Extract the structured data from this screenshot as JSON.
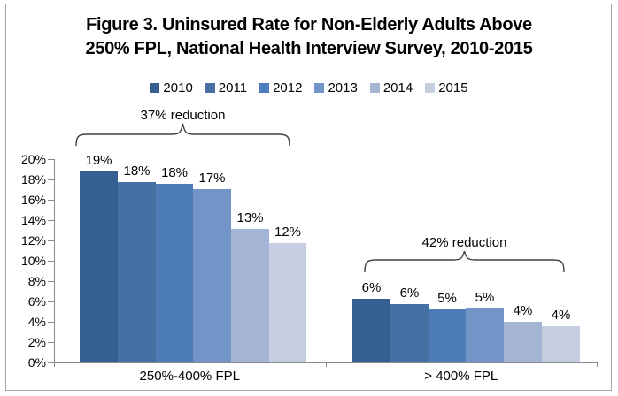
{
  "figure": {
    "title_line1": "Figure 3. Uninsured Rate for Non-Elderly Adults Above",
    "title_line2": "250% FPL, National Health Interview Survey, 2010-2015"
  },
  "colors": {
    "axis": "#898989",
    "border": "#a6a6a6",
    "bracket": "#404040",
    "text": "#000000"
  },
  "chart_data": {
    "type": "bar",
    "title": "Figure 3. Uninsured Rate for Non-Elderly Adults Above 250% FPL, National Health Interview Survey, 2010-2015",
    "categories": [
      "250%-400% FPL",
      "> 400% FPL"
    ],
    "series": [
      {
        "name": "2010",
        "color": "#365F91",
        "values": [
          19,
          6
        ],
        "plotted_estimate": [
          18.8,
          6.3
        ],
        "data_labels": [
          "19%",
          "6%"
        ]
      },
      {
        "name": "2011",
        "color": "#4470A3",
        "values": [
          18,
          6
        ],
        "plotted_estimate": [
          17.7,
          5.7
        ],
        "data_labels": [
          "18%",
          "6%"
        ]
      },
      {
        "name": "2012",
        "color": "#4D7CB7",
        "values": [
          18,
          5
        ],
        "plotted_estimate": [
          17.6,
          5.2
        ],
        "data_labels": [
          "18%",
          "5%"
        ]
      },
      {
        "name": "2013",
        "color": "#7394C6",
        "values": [
          17,
          5
        ],
        "plotted_estimate": [
          17.0,
          5.3
        ],
        "data_labels": [
          "17%",
          "5%"
        ]
      },
      {
        "name": "2014",
        "color": "#A3B4D4",
        "values": [
          13,
          4
        ],
        "plotted_estimate": [
          13.1,
          4.0
        ],
        "data_labels": [
          "13%",
          "4%"
        ]
      },
      {
        "name": "2015",
        "color": "#C6CFE2",
        "values": [
          12,
          4
        ],
        "plotted_estimate": [
          11.7,
          3.6
        ],
        "data_labels": [
          "12%",
          "4%"
        ]
      }
    ],
    "xlabel": "",
    "ylabel": "",
    "ylim": [
      0,
      20
    ],
    "ytick_step": 2,
    "ytick_labels": [
      "0%",
      "2%",
      "4%",
      "6%",
      "8%",
      "10%",
      "12%",
      "14%",
      "16%",
      "18%",
      "20%"
    ],
    "grid": false,
    "legend_position": "top",
    "legend_entries": [
      "2010",
      "2011",
      "2012",
      "2013",
      "2014",
      "2015"
    ],
    "annotations": [
      {
        "text": "37% reduction",
        "category": "250%-400% FPL"
      },
      {
        "text": "42% reduction",
        "category": "> 400% FPL"
      }
    ]
  }
}
